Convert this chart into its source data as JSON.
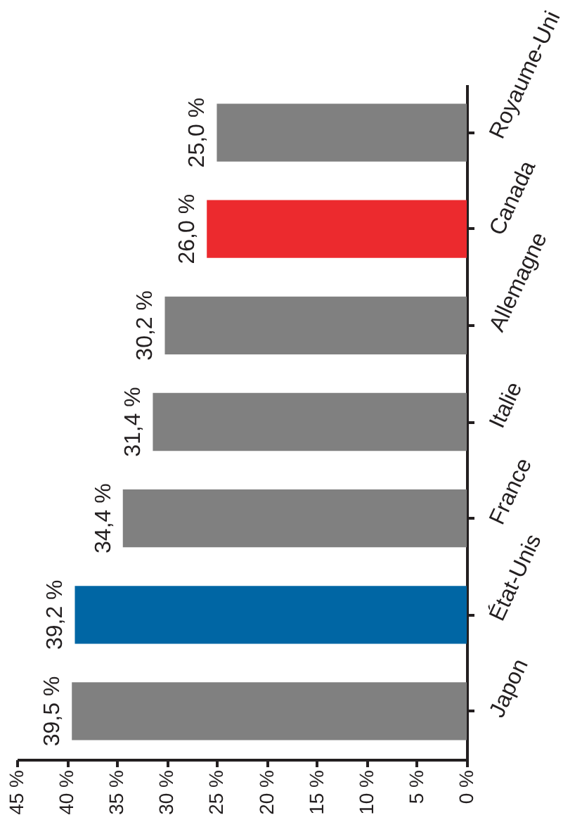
{
  "chart_data": {
    "type": "bar",
    "orientation": "horizontal",
    "categories": [
      "Royaume-Uni",
      "Canada",
      "Allemagne",
      "Italie",
      "France",
      "État-Unis",
      "Japon"
    ],
    "values": [
      25.0,
      26.0,
      30.2,
      31.4,
      34.4,
      39.2,
      39.5
    ],
    "colors": [
      "#808080",
      "#ec2a2e",
      "#808080",
      "#808080",
      "#808080",
      "#0066a4",
      "#808080"
    ],
    "value_labels": [
      "25,0 %",
      "26,0 %",
      "30,2 %",
      "31,4 %",
      "34,4 %",
      "39,2 %",
      "39,5 %"
    ],
    "xlim": [
      45,
      0
    ],
    "xticks": [
      {
        "value": 45,
        "label": "45 %"
      },
      {
        "value": 40,
        "label": "40 %"
      },
      {
        "value": 35,
        "label": "35 %"
      },
      {
        "value": 30,
        "label": "30 %"
      },
      {
        "value": 25,
        "label": "25 %"
      },
      {
        "value": 20,
        "label": "20 %"
      },
      {
        "value": 15,
        "label": "15 %"
      },
      {
        "value": 10,
        "label": "10 %"
      },
      {
        "value": 5,
        "label": "5 %"
      },
      {
        "value": 0,
        "label": "0 %"
      }
    ],
    "grid": false
  }
}
